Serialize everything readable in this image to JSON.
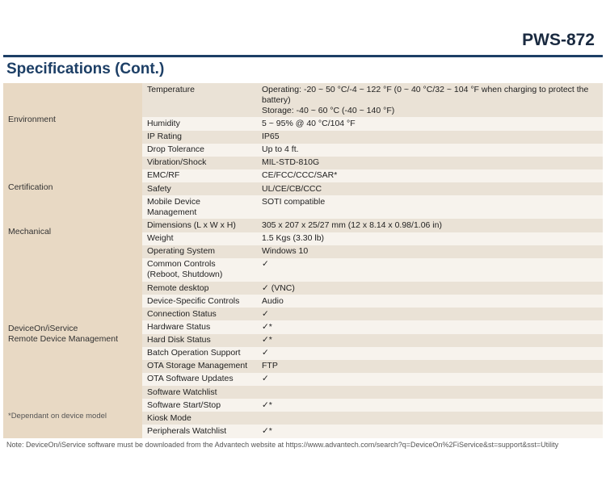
{
  "product_title": "PWS-872",
  "section_title": "Specifications (Cont.)",
  "note": "Note: DeviceOn/iService software must be downloaded from the Advantech website at https://www.advantech.com/search?q=DeviceOn%2FiService&st=support&sst=Utility",
  "dep_label": " *Dependant on device model",
  "groups": [
    {
      "category": "Environment",
      "rows": [
        {
          "label": "Temperature",
          "value": "Operating: -20 ~ 50 °C/-4 ~ 122 °F (0 ~ 40 °C/32 ~ 104 °F when charging to protect the battery)\nStorage: -40 ~ 60 °C (-40 ~ 140 °F)",
          "shade": "dark"
        },
        {
          "label": "Humidity",
          "value": "5 ~ 95% @ 40 °C/104 °F",
          "shade": "light"
        },
        {
          "label": "IP Rating",
          "value": "IP65",
          "shade": "dark"
        },
        {
          "label": "Drop Tolerance",
          "value": "Up to 4 ft.",
          "shade": "light"
        }
      ]
    },
    {
      "category": "Certification",
      "rows": [
        {
          "label": "Vibration/Shock",
          "value": "MIL-STD-810G",
          "shade": "dark"
        },
        {
          "label": "EMC/RF",
          "value": "CE/FCC/CCC/SAR*",
          "shade": "light"
        },
        {
          "label": "Safety",
          "value": "UL/CE/CB/CCC",
          "shade": "dark"
        },
        {
          "label": "Mobile Device Management",
          "value": "SOTI compatible",
          "shade": "light"
        }
      ]
    },
    {
      "category": "Mechanical",
      "rows": [
        {
          "label": "Dimensions (L x W x H)",
          "value": "305 x 207 x 25/27 mm (12 x 8.14 x 0.98/1.06 in)",
          "shade": "dark"
        },
        {
          "label": "Weight",
          "value": "1.5 Kgs (3.30 lb)",
          "shade": "light"
        }
      ]
    },
    {
      "category": "DeviceOn/iService\nRemote Device Management",
      "rows": [
        {
          "label": "Operating System",
          "value": "Windows 10",
          "shade": "dark"
        },
        {
          "label": "Common Controls\n(Reboot, Shutdown)",
          "value": "✓",
          "shade": "light"
        },
        {
          "label": "Remote desktop",
          "value": "✓ (VNC)",
          "shade": "dark"
        },
        {
          "label": "Device-Specific Controls",
          "value": "Audio",
          "shade": "light"
        },
        {
          "label": "Connection Status",
          "value": "✓",
          "shade": "dark"
        },
        {
          "label": "Hardware Status",
          "value": "✓*",
          "shade": "light"
        },
        {
          "label": "Hard Disk Status",
          "value": "✓*",
          "shade": "dark"
        },
        {
          "label": "Batch Operation Support",
          "value": "✓",
          "shade": "light"
        },
        {
          "label": "OTA Storage Management",
          "value": "FTP",
          "shade": "dark"
        },
        {
          "label": "OTA Software Updates",
          "value": "✓",
          "shade": "light"
        },
        {
          "label": "Software Watchlist",
          "value": "",
          "shade": "dark"
        },
        {
          "label": "Software Start/Stop",
          "value": "✓*",
          "shade": "light"
        },
        {
          "label": "Kiosk Mode",
          "value": "",
          "shade": "dark"
        },
        {
          "label": "Peripherals Watchlist",
          "value": "✓*",
          "shade": "light"
        }
      ]
    }
  ]
}
